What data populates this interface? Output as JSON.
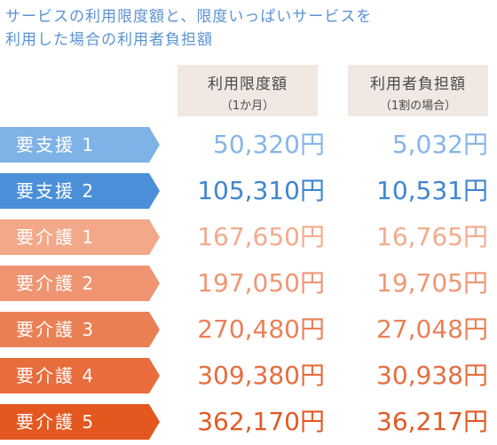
{
  "title": {
    "line1": "サービスの利用限度額と、限度いっぱいサービスを",
    "line2": "利用した場合の利用者負担額"
  },
  "columns": {
    "limit": {
      "label": "利用限度額",
      "sub": "（1か月）"
    },
    "copay": {
      "label": "利用者負担額",
      "sub": "（1割の場合）"
    }
  },
  "rows": [
    {
      "level": "要支援 1",
      "limit": "50,320円",
      "copay": "5,032円",
      "tag_color": "#7fb2e6",
      "value_color": "#86b6e8"
    },
    {
      "level": "要支援 2",
      "limit": "105,310円",
      "copay": "10,531円",
      "tag_color": "#4a8fd8",
      "value_color": "#3f86d2"
    },
    {
      "level": "要介護 1",
      "limit": "167,650円",
      "copay": "16,765円",
      "tag_color": "#f3a88a",
      "value_color": "#f3ab8d"
    },
    {
      "level": "要介護 2",
      "limit": "197,050円",
      "copay": "19,705円",
      "tag_color": "#ef9470",
      "value_color": "#ef9774"
    },
    {
      "level": "要介護 3",
      "limit": "270,480円",
      "copay": "27,048円",
      "tag_color": "#eb7f54",
      "value_color": "#ea8058"
    },
    {
      "level": "要介護 4",
      "limit": "309,380円",
      "copay": "30,938円",
      "tag_color": "#e86c3c",
      "value_color": "#e66d3f"
    },
    {
      "level": "要介護 5",
      "limit": "362,170円",
      "copay": "36,217円",
      "tag_color": "#e4571f",
      "value_color": "#e25a24"
    }
  ]
}
